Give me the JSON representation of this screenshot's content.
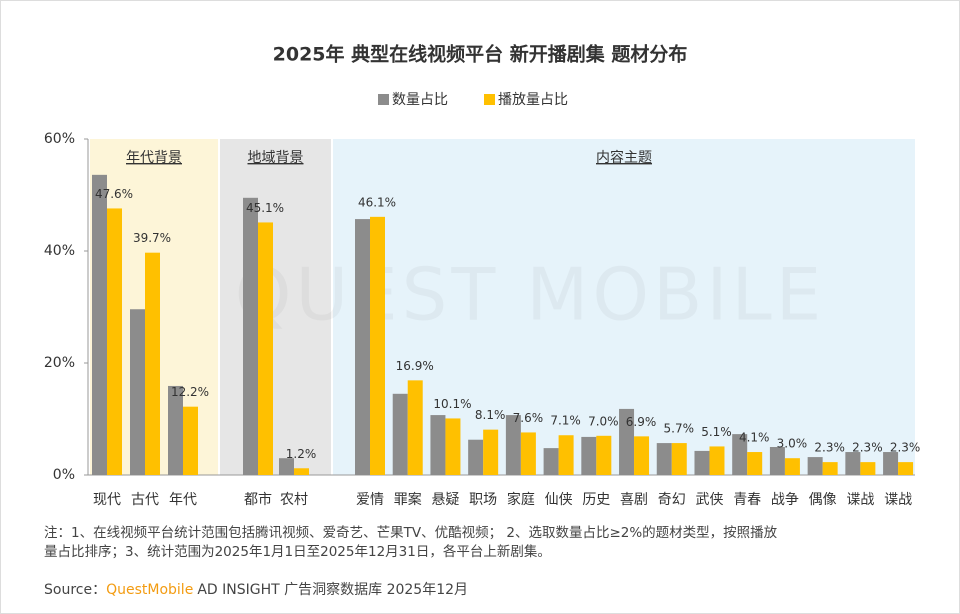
{
  "chart_data": {
    "type": "bar",
    "title": "2025年 典型在线视频平台 新开播剧集 题材分布",
    "categories": [
      "现代",
      "古代",
      "年代",
      "都市",
      "农村",
      "爱情",
      "罪案",
      "悬疑",
      "职场",
      "家庭",
      "仙侠",
      "历史",
      "喜剧",
      "奇幻",
      "武侠",
      "青春",
      "战争",
      "偶像",
      "谍战",
      "谍战"
    ],
    "group_labels": [
      "年代背景",
      "地域背景",
      "内容主题"
    ],
    "series": [
      {
        "name": "数量占比",
        "color": "#8c8c8c",
        "values": [
          53.6,
          29.6,
          15.9,
          49.5,
          3.0,
          45.7,
          14.5,
          10.7,
          6.3,
          10.7,
          4.8,
          6.8,
          11.8,
          5.7,
          4.3,
          7.3,
          5.0,
          3.2,
          4.1,
          4.1
        ]
      },
      {
        "name": "播放量占比",
        "color": "#ffc000",
        "values": [
          47.6,
          39.7,
          12.2,
          45.1,
          1.2,
          46.1,
          16.9,
          10.1,
          8.1,
          7.6,
          7.1,
          7.0,
          6.9,
          5.7,
          5.1,
          4.1,
          3.0,
          2.3,
          2.3,
          2.3
        ],
        "value_labels": [
          "47.6%",
          "39.7%",
          "12.2%",
          "45.1%",
          "1.2%",
          "46.1%",
          "16.9%",
          "10.1%",
          "8.1%",
          "7.6%",
          "7.1%",
          "7.0%",
          "6.9%",
          "5.7%",
          "5.1%",
          "4.1%",
          "3.0%",
          "2.3%",
          "2.3%",
          "2.3%"
        ]
      }
    ],
    "ylim": [
      0,
      60
    ],
    "yticks": [
      {
        "value": 0,
        "label": "0%"
      },
      {
        "value": 20,
        "label": "20%"
      },
      {
        "value": 40,
        "label": "40%"
      },
      {
        "value": 60,
        "label": "60%"
      }
    ],
    "watermark": "QUEST MOBILE",
    "notes": [
      "注：1、在线视频平台统计范围包括腾讯视频、爱奇艺、芒果TV、优酷视频； 2、选取数量占比≥2%的题材类型，按照播放",
      "量占比排序；3、统计范围为2025年1月1日至2025年12月31日，各平台上新剧集。"
    ],
    "source_label": "Source：",
    "source_brand": "QuestMobile",
    "source_rest": "AD INSIGHT 广告洞察数据库 2025年12月"
  }
}
